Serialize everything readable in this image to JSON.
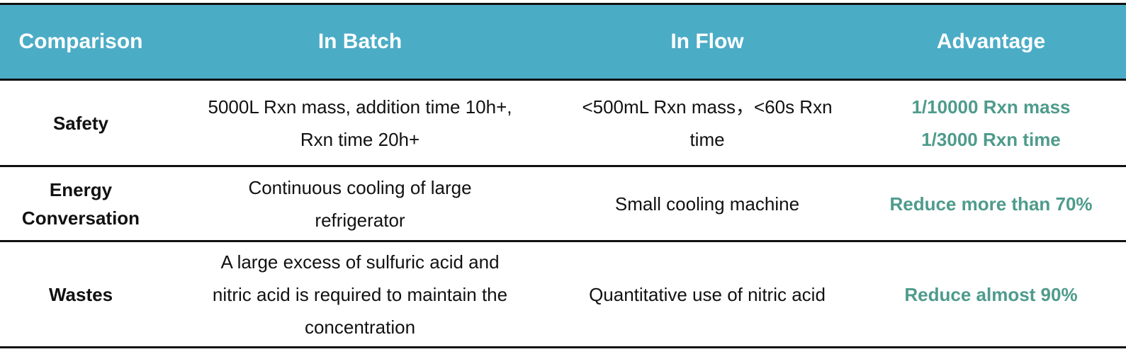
{
  "table": {
    "header": [
      "Comparison",
      "In Batch",
      "In Flow",
      "Advantage"
    ],
    "rows": [
      [
        [
          "Safety"
        ],
        [
          "5000L Rxn mass, addition time 10h+,",
          "Rxn time 20h+"
        ],
        [
          "<500mL Rxn mass，<60s Rxn",
          "time"
        ],
        [
          "1/10000 Rxn mass",
          "1/3000 Rxn time"
        ]
      ],
      [
        [
          "Energy",
          "Conversation"
        ],
        [
          "Continuous cooling of large",
          "refrigerator"
        ],
        [
          "Small cooling machine"
        ],
        [
          "Reduce more than 70%"
        ]
      ],
      [
        [
          "Wastes"
        ],
        [
          "A large excess of sulfuric acid and",
          "nitric acid is required to maintain the",
          "concentration"
        ],
        [
          "Quantitative use of nitric acid"
        ],
        [
          "Reduce almost 90%"
        ]
      ]
    ]
  }
}
